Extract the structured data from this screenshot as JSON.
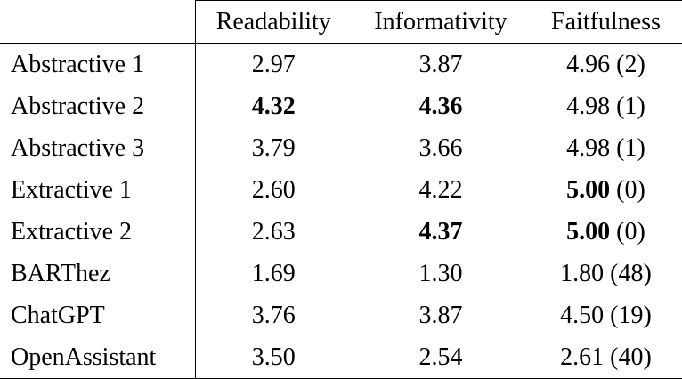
{
  "table": {
    "columns": [
      "Readability",
      "Informativity",
      "Faitfulness"
    ],
    "rows": [
      {
        "name": "Abstractive 1",
        "readability": "2.97",
        "informativity": "3.87",
        "faithfulness": "4.96",
        "count": "(2)",
        "bold": []
      },
      {
        "name": "Abstractive 2",
        "readability": "4.32",
        "informativity": "4.36",
        "faithfulness": "4.98",
        "count": "(1)",
        "bold": [
          "readability",
          "informativity"
        ]
      },
      {
        "name": "Abstractive 3",
        "readability": "3.79",
        "informativity": "3.66",
        "faithfulness": "4.98",
        "count": "(1)",
        "bold": []
      },
      {
        "name": "Extractive 1",
        "readability": "2.60",
        "informativity": "4.22",
        "faithfulness": "5.00",
        "count": "(0)",
        "bold": [
          "faithfulness"
        ]
      },
      {
        "name": "Extractive 2",
        "readability": "2.63",
        "informativity": "4.37",
        "faithfulness": "5.00",
        "count": "(0)",
        "bold": [
          "informativity",
          "faithfulness"
        ]
      },
      {
        "name": "BARThez",
        "readability": "1.69",
        "informativity": "1.30",
        "faithfulness": "1.80",
        "count": "(48)",
        "bold": []
      },
      {
        "name": "ChatGPT",
        "readability": "3.76",
        "informativity": "3.87",
        "faithfulness": "4.50",
        "count": "(19)",
        "bold": []
      },
      {
        "name": "OpenAssistant",
        "readability": "3.50",
        "informativity": "2.54",
        "faithfulness": "2.61",
        "count": "(40)",
        "bold": []
      }
    ]
  }
}
